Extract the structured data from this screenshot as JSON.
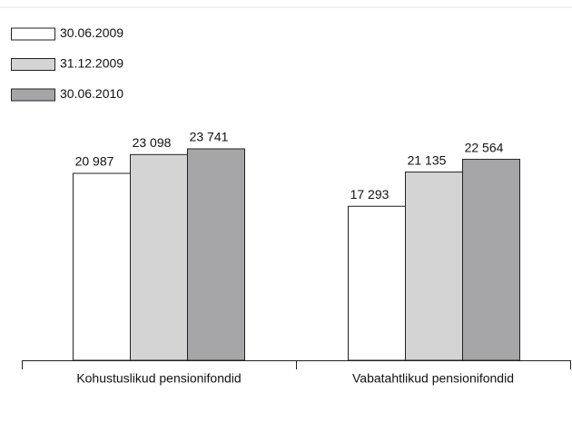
{
  "chart_data": {
    "type": "bar",
    "categories": [
      "Kohustuslikud pensionifondid",
      "Vabatahtlikud pensionifondid"
    ],
    "series": [
      {
        "name": "30.06.2009",
        "color": "#ffffff",
        "values": [
          20987,
          17293
        ],
        "value_labels": [
          "20 987",
          "17 293"
        ]
      },
      {
        "name": "31.12.2009",
        "color": "#d4d4d4",
        "values": [
          23098,
          21135
        ],
        "value_labels": [
          "23 098",
          "21 135"
        ]
      },
      {
        "name": "30.06.2010",
        "color": "#a6a6a8",
        "values": [
          23741,
          22564
        ],
        "value_labels": [
          "23 741",
          "22 564"
        ]
      }
    ],
    "legend": "top-left"
  }
}
